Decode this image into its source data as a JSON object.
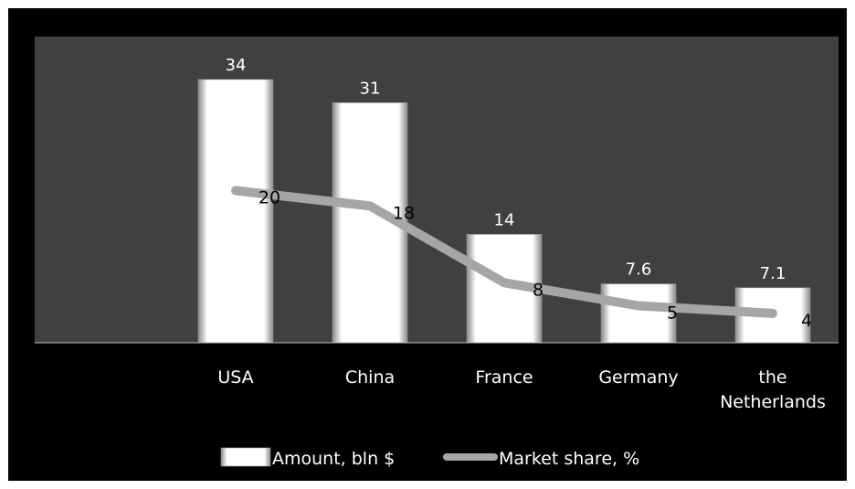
{
  "chart_data": {
    "type": "bar",
    "categories": [
      "USA",
      "China",
      "France",
      "Germany",
      "the Netherlands"
    ],
    "series": [
      {
        "name": "Amount, bln $",
        "type": "bar",
        "values": [
          34,
          31,
          14,
          7.6,
          7.1
        ]
      },
      {
        "name": "Market share, %",
        "type": "line",
        "values": [
          20,
          18,
          8,
          5,
          4
        ]
      }
    ],
    "bar_value_labels": [
      "34",
      "31",
      "14",
      "7.6",
      "7.1"
    ],
    "line_value_labels": [
      "20",
      "18",
      "8",
      "5",
      "4"
    ],
    "category_label_lines": [
      [
        "USA"
      ],
      [
        "China"
      ],
      [
        "France"
      ],
      [
        "Germany"
      ],
      [
        "the",
        "Netherlands"
      ]
    ],
    "legend": {
      "position": "bottom",
      "entries": [
        "Amount, bln $",
        "Market share, %"
      ]
    },
    "grid": false,
    "colors": {
      "background": "#000000",
      "plot_area": "#404040",
      "bar": "#f2f2f2",
      "line": "#a6a6a6",
      "text": "#ffffff"
    }
  }
}
